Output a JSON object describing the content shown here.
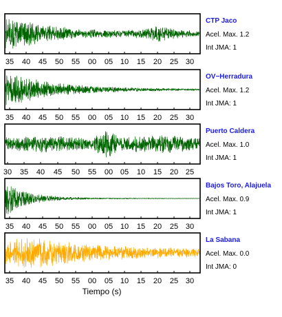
{
  "chart_data": {
    "type": "line",
    "xlabel": "Tiempo (s)",
    "panels": [
      {
        "station": "CTP Jaco",
        "accel_label": "Acel. Max. 1.2",
        "intensity_label": "Int JMA: 1",
        "color": "#006400",
        "tick_labels": [
          "35",
          "40",
          "45",
          "50",
          "55",
          "00",
          "05",
          "10",
          "15",
          "20",
          "25",
          "30"
        ],
        "envelope": [
          {
            "t": 0.0,
            "a": 0.95
          },
          {
            "t": 0.08,
            "a": 0.75
          },
          {
            "t": 0.2,
            "a": 0.45
          },
          {
            "t": 0.4,
            "a": 0.25
          },
          {
            "t": 0.6,
            "a": 0.18
          },
          {
            "t": 0.72,
            "a": 0.25
          },
          {
            "t": 0.78,
            "a": 0.48
          },
          {
            "t": 0.84,
            "a": 0.3
          },
          {
            "t": 1.0,
            "a": 0.12
          }
        ]
      },
      {
        "station": "OV−Herradura",
        "accel_label": "Acel. Max. 1.2",
        "intensity_label": "Int JMA: 1",
        "color": "#006400",
        "tick_labels": [
          "35",
          "40",
          "45",
          "50",
          "55",
          "00",
          "05",
          "10",
          "15",
          "20",
          "25",
          "30"
        ],
        "envelope": [
          {
            "t": 0.0,
            "a": 0.9
          },
          {
            "t": 0.08,
            "a": 0.72
          },
          {
            "t": 0.25,
            "a": 0.35
          },
          {
            "t": 0.5,
            "a": 0.15
          },
          {
            "t": 0.75,
            "a": 0.08
          },
          {
            "t": 1.0,
            "a": 0.05
          }
        ]
      },
      {
        "station": "Puerto Caldera",
        "accel_label": "Acel. Max. 1.0",
        "intensity_label": "Int JMA: 1",
        "color": "#006400",
        "tick_labels": [
          "30",
          "35",
          "40",
          "45",
          "50",
          "55",
          "00",
          "05",
          "10",
          "15",
          "20",
          "25"
        ],
        "envelope": [
          {
            "t": 0.0,
            "a": 0.35
          },
          {
            "t": 0.2,
            "a": 0.45
          },
          {
            "t": 0.45,
            "a": 0.3
          },
          {
            "t": 0.54,
            "a": 0.95
          },
          {
            "t": 0.58,
            "a": 0.35
          },
          {
            "t": 0.75,
            "a": 0.5
          },
          {
            "t": 0.88,
            "a": 0.45
          },
          {
            "t": 1.0,
            "a": 0.3
          }
        ]
      },
      {
        "station": "Bajos Toro, Alajuela",
        "accel_label": "Acel. Max. 0.9",
        "intensity_label": "Int JMA: 1",
        "color": "#006400",
        "tick_labels": [
          "35",
          "40",
          "45",
          "50",
          "55",
          "00",
          "05",
          "10",
          "15",
          "20",
          "25",
          "30"
        ],
        "envelope": [
          {
            "t": 0.0,
            "a": 0.98
          },
          {
            "t": 0.05,
            "a": 0.6
          },
          {
            "t": 0.15,
            "a": 0.25
          },
          {
            "t": 0.3,
            "a": 0.08
          },
          {
            "t": 0.5,
            "a": 0.03
          },
          {
            "t": 1.0,
            "a": 0.01
          }
        ]
      },
      {
        "station": "La Sabana",
        "accel_label": "Acel. Max. 0.0",
        "intensity_label": "Int JMA: 0",
        "color": "#ffaa00",
        "tick_labels": [
          "35",
          "40",
          "45",
          "50",
          "55",
          "00",
          "05",
          "10",
          "15",
          "20",
          "25",
          "30"
        ],
        "envelope": [
          {
            "t": 0.0,
            "a": 0.7
          },
          {
            "t": 0.15,
            "a": 0.85
          },
          {
            "t": 0.3,
            "a": 0.6
          },
          {
            "t": 0.5,
            "a": 0.4
          },
          {
            "t": 0.75,
            "a": 0.3
          },
          {
            "t": 1.0,
            "a": 0.22
          }
        ]
      }
    ]
  }
}
